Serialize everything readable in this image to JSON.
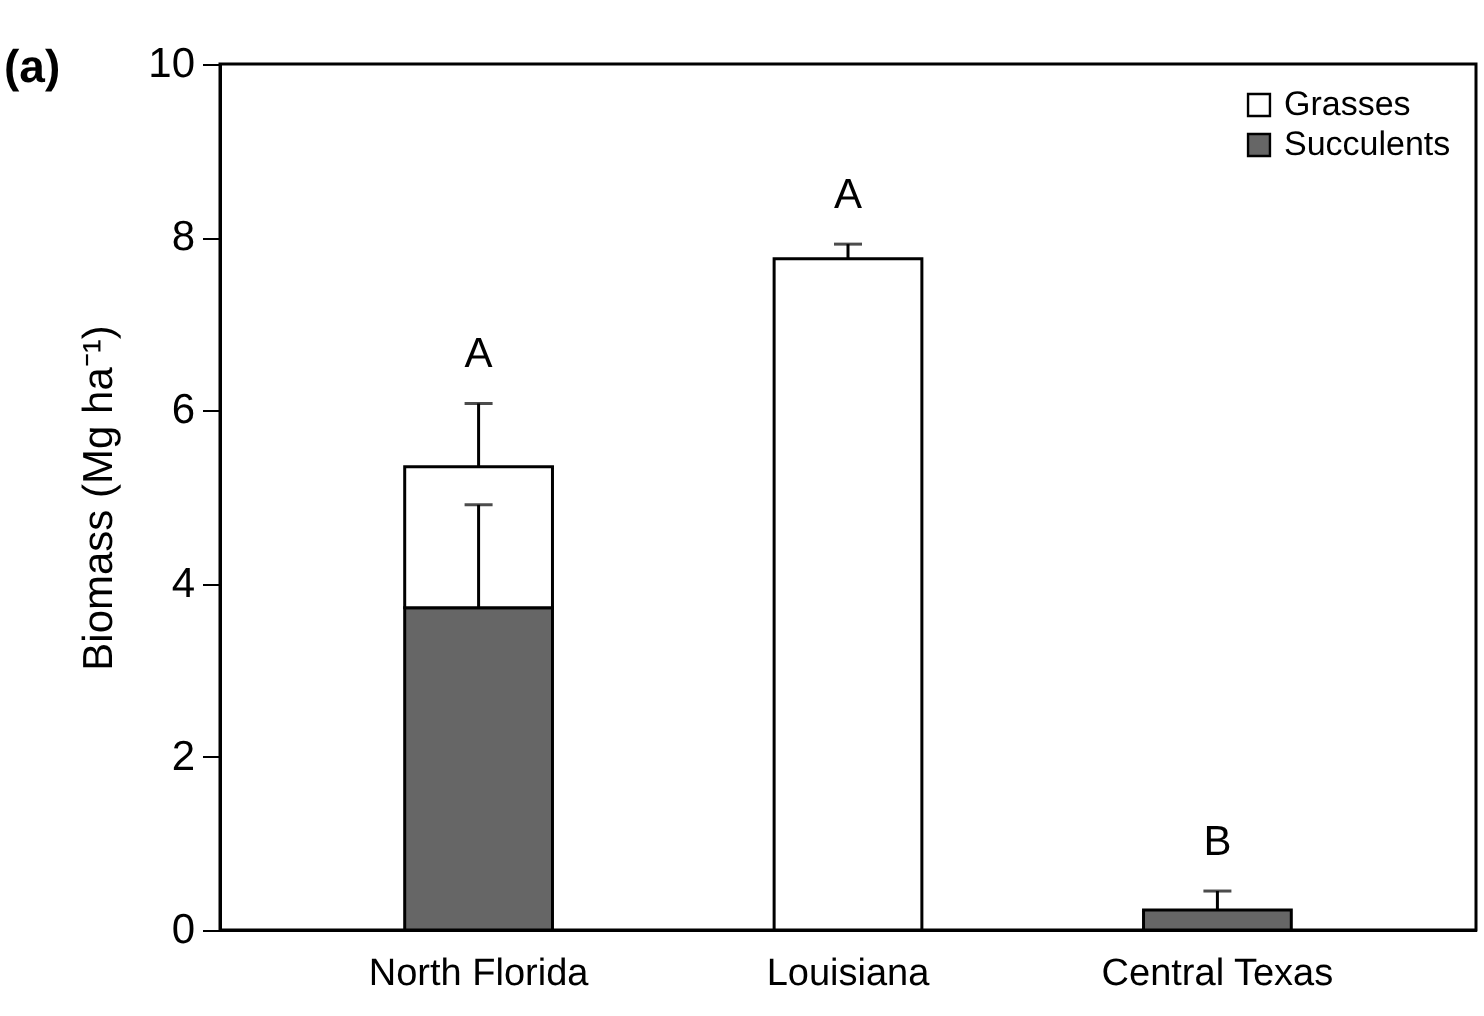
{
  "chart_data": {
    "type": "bar",
    "stacked": true,
    "ylabel": "Biomass (Mg ha⁻¹)",
    "categories": [
      "North Florida",
      "Louisiana",
      "Central Texas"
    ],
    "series": [
      {
        "name": "Succulents",
        "color": "#666666",
        "values": [
          3.72,
          null,
          0.23
        ],
        "errors": [
          [
            3.72,
            4.91
          ],
          null,
          [
            0.23,
            0.45
          ]
        ]
      },
      {
        "name": "Grasses",
        "color": "#ffffff",
        "values": [
          1.63,
          7.75,
          null
        ],
        "errors": [
          [
            5.35,
            6.08
          ],
          [
            7.75,
            7.92
          ],
          null
        ]
      }
    ],
    "ylim": [
      0,
      10
    ],
    "yticks": [
      0,
      2,
      4,
      6,
      8,
      10
    ],
    "grid": false,
    "legend": "top right",
    "annotations": [
      "(a)",
      {
        "text": "A",
        "x": "North Florida",
        "y": 6.08
      },
      {
        "text": "A",
        "x": "Louisiana",
        "y": 7.92
      },
      {
        "text": "B",
        "x": "Central Texas",
        "y": 0.45
      }
    ]
  }
}
